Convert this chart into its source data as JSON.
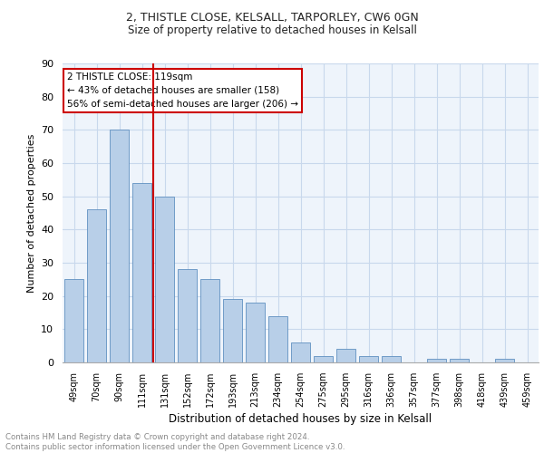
{
  "title1": "2, THISTLE CLOSE, KELSALL, TARPORLEY, CW6 0GN",
  "title2": "Size of property relative to detached houses in Kelsall",
  "xlabel": "Distribution of detached houses by size in Kelsall",
  "ylabel": "Number of detached properties",
  "categories": [
    "49sqm",
    "70sqm",
    "90sqm",
    "111sqm",
    "131sqm",
    "152sqm",
    "172sqm",
    "193sqm",
    "213sqm",
    "234sqm",
    "254sqm",
    "275sqm",
    "295sqm",
    "316sqm",
    "336sqm",
    "357sqm",
    "377sqm",
    "398sqm",
    "418sqm",
    "439sqm",
    "459sqm"
  ],
  "values": [
    25,
    46,
    70,
    54,
    50,
    28,
    25,
    19,
    18,
    14,
    6,
    2,
    4,
    2,
    2,
    0,
    1,
    1,
    0,
    1,
    0
  ],
  "bar_color": "#b8cfe8",
  "bar_edge_color": "#6090c0",
  "vline_x_index": 3,
  "vline_color": "#cc0000",
  "annotation_line1": "2 THISTLE CLOSE: 119sqm",
  "annotation_line2": "← 43% of detached houses are smaller (158)",
  "annotation_line3": "56% of semi-detached houses are larger (206) →",
  "annotation_box_color": "#cc0000",
  "ylim": [
    0,
    90
  ],
  "yticks": [
    0,
    10,
    20,
    30,
    40,
    50,
    60,
    70,
    80,
    90
  ],
  "footnote": "Contains HM Land Registry data © Crown copyright and database right 2024.\nContains public sector information licensed under the Open Government Licence v3.0.",
  "footnote_color": "#888888",
  "grid_color": "#c8d8ec",
  "background_color": "#eef4fb"
}
